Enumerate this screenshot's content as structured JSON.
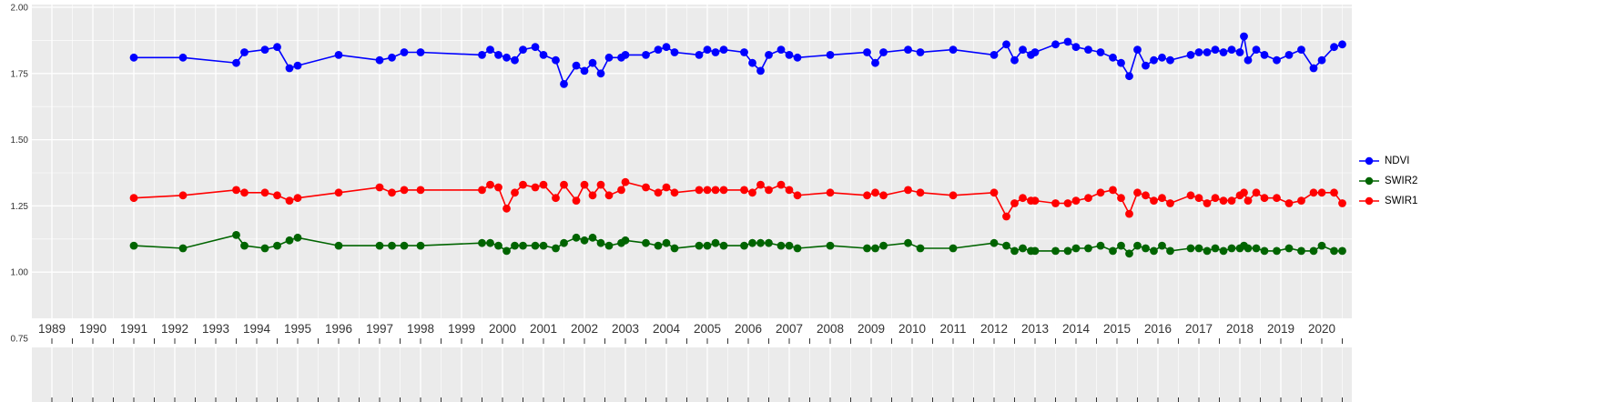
{
  "chart_data": {
    "type": "line",
    "title": "",
    "xlabel": "",
    "ylabel": "",
    "panel_background": "#EBEBEB",
    "grid_color": "#FFFFFF",
    "axis_text_color": "#333333",
    "tick_color": "#333333",
    "grid": true,
    "legend_position": "right",
    "xlim": [
      1988.5,
      2020.8
    ],
    "ylim": [
      0.75,
      2.0
    ],
    "x_ticks": [
      1989,
      1990,
      1991,
      1992,
      1993,
      1994,
      1995,
      1996,
      1997,
      1998,
      1999,
      2000,
      2001,
      2002,
      2003,
      2004,
      2005,
      2006,
      2007,
      2008,
      2009,
      2010,
      2011,
      2012,
      2013,
      2014,
      2015,
      2016,
      2017,
      2018,
      2019,
      2020
    ],
    "y_ticks": [
      2.0,
      1.75,
      1.5,
      1.25,
      1.0,
      0.75
    ],
    "y_tick_labels": [
      "2.00",
      "1.75",
      "1.50",
      "1.25",
      "1.00",
      "0.75"
    ],
    "x": [
      1991.0,
      1992.2,
      1993.5,
      1993.7,
      1994.2,
      1994.5,
      1994.8,
      1995.0,
      1996.0,
      1997.0,
      1997.3,
      1997.6,
      1998.0,
      1999.5,
      1999.7,
      1999.9,
      2000.1,
      2000.3,
      2000.5,
      2000.8,
      2001.0,
      2001.3,
      2001.5,
      2001.8,
      2002.0,
      2002.2,
      2002.4,
      2002.6,
      2002.9,
      2003.0,
      2003.5,
      2003.8,
      2004.0,
      2004.2,
      2004.8,
      2005.0,
      2005.2,
      2005.4,
      2005.9,
      2006.1,
      2006.3,
      2006.5,
      2006.8,
      2007.0,
      2007.2,
      2008.0,
      2008.9,
      2009.1,
      2009.3,
      2009.9,
      2010.2,
      2011.0,
      2012.0,
      2012.3,
      2012.5,
      2012.7,
      2012.9,
      2013.0,
      2013.5,
      2013.8,
      2014.0,
      2014.3,
      2014.6,
      2014.9,
      2015.1,
      2015.3,
      2015.5,
      2015.7,
      2015.9,
      2016.1,
      2016.3,
      2016.8,
      2017.0,
      2017.2,
      2017.4,
      2017.6,
      2017.8,
      2018.0,
      2018.1,
      2018.2,
      2018.4,
      2018.6,
      2018.9,
      2019.2,
      2019.5,
      2019.8,
      2020.0,
      2020.3,
      2020.5
    ],
    "series": [
      {
        "name": "NDVI",
        "color": "#0000FF",
        "values": [
          1.81,
          1.81,
          1.79,
          1.83,
          1.84,
          1.85,
          1.77,
          1.78,
          1.82,
          1.8,
          1.81,
          1.83,
          1.83,
          1.82,
          1.84,
          1.82,
          1.81,
          1.8,
          1.84,
          1.85,
          1.82,
          1.8,
          1.71,
          1.78,
          1.76,
          1.79,
          1.75,
          1.81,
          1.81,
          1.82,
          1.82,
          1.84,
          1.85,
          1.83,
          1.82,
          1.84,
          1.83,
          1.84,
          1.83,
          1.79,
          1.76,
          1.82,
          1.84,
          1.82,
          1.81,
          1.82,
          1.83,
          1.79,
          1.83,
          1.84,
          1.83,
          1.84,
          1.82,
          1.86,
          1.8,
          1.84,
          1.82,
          1.83,
          1.86,
          1.87,
          1.85,
          1.84,
          1.83,
          1.81,
          1.79,
          1.74,
          1.84,
          1.78,
          1.8,
          1.81,
          1.8,
          1.82,
          1.83,
          1.83,
          1.84,
          1.83,
          1.84,
          1.83,
          1.89,
          1.8,
          1.84,
          1.82,
          1.8,
          1.82,
          1.84,
          1.77,
          1.8,
          1.85,
          1.86
        ]
      },
      {
        "name": "SWIR2",
        "color": "#006400",
        "values": [
          1.1,
          1.09,
          1.14,
          1.1,
          1.09,
          1.1,
          1.12,
          1.13,
          1.1,
          1.1,
          1.1,
          1.1,
          1.1,
          1.11,
          1.11,
          1.1,
          1.08,
          1.1,
          1.1,
          1.1,
          1.1,
          1.09,
          1.11,
          1.13,
          1.12,
          1.13,
          1.11,
          1.1,
          1.11,
          1.12,
          1.11,
          1.1,
          1.11,
          1.09,
          1.1,
          1.1,
          1.11,
          1.1,
          1.1,
          1.11,
          1.11,
          1.11,
          1.1,
          1.1,
          1.09,
          1.1,
          1.09,
          1.09,
          1.1,
          1.11,
          1.09,
          1.09,
          1.11,
          1.1,
          1.08,
          1.09,
          1.08,
          1.08,
          1.08,
          1.08,
          1.09,
          1.09,
          1.1,
          1.08,
          1.1,
          1.07,
          1.1,
          1.09,
          1.08,
          1.1,
          1.08,
          1.09,
          1.09,
          1.08,
          1.09,
          1.08,
          1.09,
          1.09,
          1.1,
          1.09,
          1.09,
          1.08,
          1.08,
          1.09,
          1.08,
          1.08,
          1.1,
          1.08,
          1.08
        ]
      },
      {
        "name": "SWIR1",
        "color": "#FF0000",
        "values": [
          1.28,
          1.29,
          1.31,
          1.3,
          1.3,
          1.29,
          1.27,
          1.28,
          1.3,
          1.32,
          1.3,
          1.31,
          1.31,
          1.31,
          1.33,
          1.32,
          1.24,
          1.3,
          1.33,
          1.32,
          1.33,
          1.28,
          1.33,
          1.27,
          1.33,
          1.29,
          1.33,
          1.29,
          1.31,
          1.34,
          1.32,
          1.3,
          1.32,
          1.3,
          1.31,
          1.31,
          1.31,
          1.31,
          1.31,
          1.3,
          1.33,
          1.31,
          1.33,
          1.31,
          1.29,
          1.3,
          1.29,
          1.3,
          1.29,
          1.31,
          1.3,
          1.29,
          1.3,
          1.21,
          1.26,
          1.28,
          1.27,
          1.27,
          1.26,
          1.26,
          1.27,
          1.28,
          1.3,
          1.31,
          1.28,
          1.22,
          1.3,
          1.29,
          1.27,
          1.28,
          1.26,
          1.29,
          1.28,
          1.26,
          1.28,
          1.27,
          1.27,
          1.29,
          1.3,
          1.27,
          1.3,
          1.28,
          1.28,
          1.26,
          1.27,
          1.3,
          1.3,
          1.3,
          1.26
        ]
      }
    ]
  },
  "legend": {
    "items": [
      {
        "label": "NDVI",
        "color": "#0000FF"
      },
      {
        "label": "SWIR2",
        "color": "#006400"
      },
      {
        "label": "SWIR1",
        "color": "#FF0000"
      }
    ]
  }
}
